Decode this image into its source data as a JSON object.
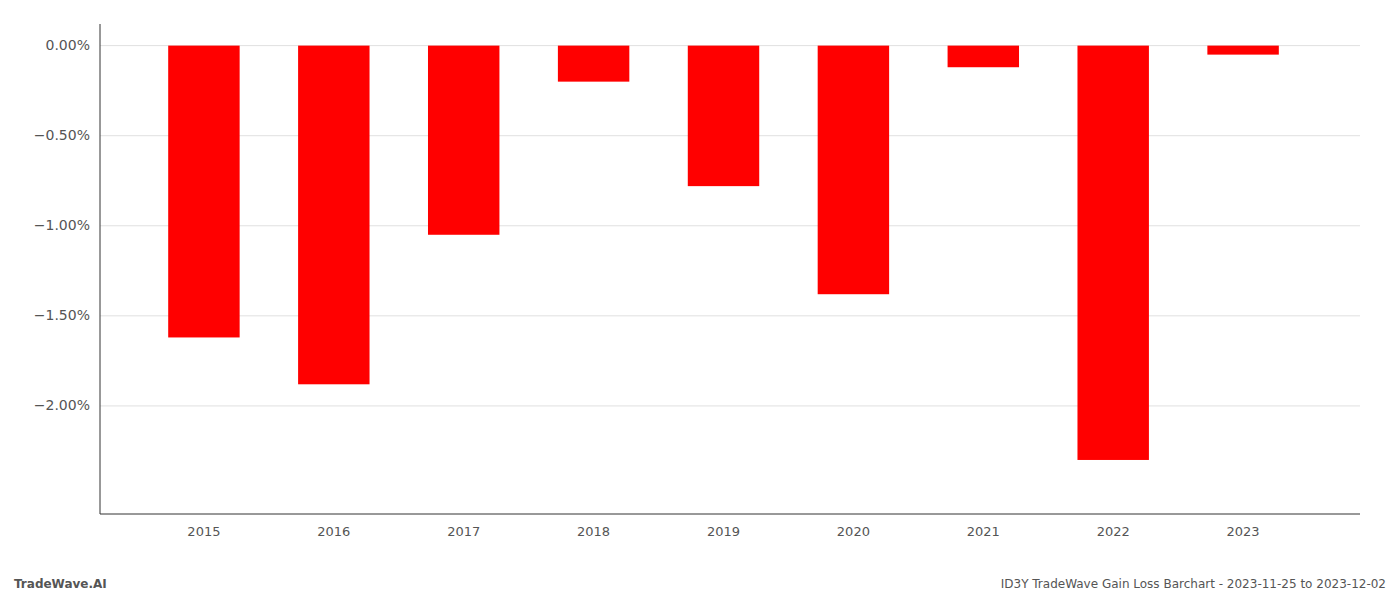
{
  "chart_data": {
    "type": "bar",
    "x": [
      2015,
      2016,
      2017,
      2018,
      2019,
      2020,
      2021,
      2022,
      2023
    ],
    "values": [
      -1.62,
      -1.88,
      -1.05,
      -0.2,
      -0.78,
      -1.38,
      -0.12,
      -2.3,
      -0.05
    ],
    "color": "#FF0000",
    "xlim": [
      2014.2,
      2023.9
    ],
    "xticks": [
      2015,
      2016,
      2017,
      2018,
      2019,
      2020,
      2021,
      2022,
      2023
    ],
    "ylim": [
      -2.6,
      0.12
    ],
    "yticks": [
      {
        "value": 0.0,
        "label": "0.00%"
      },
      {
        "value": -0.5,
        "label": "−0.50%"
      },
      {
        "value": -1.0,
        "label": "−1.00%"
      },
      {
        "value": -1.5,
        "label": "−1.50%"
      },
      {
        "value": -2.0,
        "label": "−2.00%"
      }
    ],
    "grid": true,
    "annotations": [
      "TradeWave.AI",
      "ID3Y TradeWave Gain Loss Barchart - 2023-11-25 to 2023-12-02"
    ]
  }
}
